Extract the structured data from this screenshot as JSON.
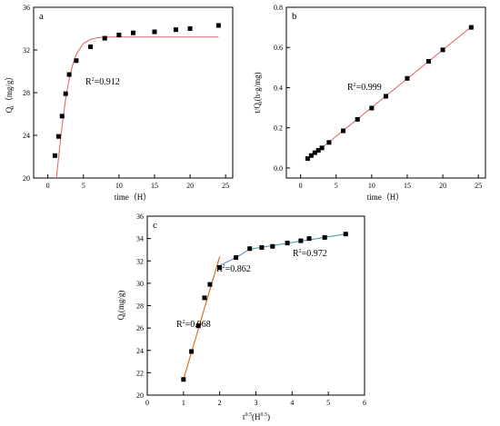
{
  "chart_data": [
    {
      "type": "scatter",
      "panel_label": "a",
      "xlabel": "time（H）",
      "ylabel": "Qt（mg/g）",
      "ylabel_main": "Q",
      "ylabel_sub": "t",
      "ylabel_rest": "（mg/g）",
      "xlim": [
        -2,
        26
      ],
      "ylim": [
        20,
        36
      ],
      "x_ticks": [
        0,
        5,
        10,
        15,
        20,
        25
      ],
      "y_ticks": [
        20,
        24,
        28,
        32,
        36
      ],
      "marker_color": "#000000",
      "series": [
        {
          "x": [
            1,
            1.5,
            2,
            2.5,
            3,
            4,
            6,
            8,
            10,
            12,
            15,
            18,
            20,
            24
          ],
          "y": [
            22.1,
            23.9,
            25.8,
            27.9,
            29.7,
            31.0,
            32.3,
            33.1,
            33.4,
            33.6,
            33.7,
            33.9,
            34.0,
            34.3
          ]
        }
      ],
      "fit": {
        "color": "#e06060",
        "r2_text": "R2=0.912",
        "r2_main": "R",
        "r2_sup": "2",
        "r2_rest": "=0.912",
        "x": [
          1.2,
          1.6,
          2.0,
          2.5,
          3.0,
          3.5,
          4.0,
          5.0,
          6.0,
          7.0,
          8.0,
          10.0,
          14.0,
          20.0,
          24.0
        ],
        "y": [
          20.0,
          22.5,
          24.9,
          27.4,
          29.3,
          30.6,
          31.6,
          32.6,
          33.0,
          33.15,
          33.2,
          33.22,
          33.22,
          33.22,
          33.22
        ]
      }
    },
    {
      "type": "scatter",
      "panel_label": "b",
      "xlabel": "time（H）",
      "ylabel": "t/Qt(h·g/mg)",
      "ylabel_main": "t/Q",
      "ylabel_sub": "t",
      "ylabel_rest": "(h·g/mg)",
      "xlim": [
        -2,
        26
      ],
      "ylim": [
        -0.05,
        0.8
      ],
      "x_ticks": [
        0,
        5,
        10,
        15,
        20,
        25
      ],
      "y_ticks": [
        0.0,
        0.2,
        0.4,
        0.6,
        0.8
      ],
      "y_tick_labels": [
        "0.0",
        "0.2",
        "0.4",
        "0.6",
        "0.8"
      ],
      "marker_color": "#000000",
      "series": [
        {
          "x": [
            1,
            1.5,
            2,
            2.5,
            3,
            4,
            6,
            8,
            10,
            12,
            15,
            18,
            20,
            24
          ],
          "y": [
            0.047,
            0.062,
            0.076,
            0.088,
            0.1,
            0.127,
            0.185,
            0.242,
            0.298,
            0.357,
            0.446,
            0.531,
            0.588,
            0.7
          ]
        }
      ],
      "fit": {
        "color": "#e06060",
        "r2_text": "R2=0.999",
        "r2_main": "R",
        "r2_sup": "2",
        "r2_rest": "=0.999",
        "x": [
          1,
          24
        ],
        "y": [
          0.043,
          0.703
        ]
      }
    },
    {
      "type": "scatter",
      "panel_label": "c",
      "xlabel": "t0.5(H0.5)",
      "xlabel_main": "t",
      "xlabel_sup": "0.5",
      "xlabel_mid": "(H",
      "xlabel_sup2": "0.5",
      "xlabel_end": ")",
      "ylabel": "Qt(mg/g)",
      "ylabel_main": "Q",
      "ylabel_sub": "t",
      "ylabel_rest": "(mg/g)",
      "xlim": [
        0,
        6
      ],
      "ylim": [
        20,
        36
      ],
      "x_ticks": [
        0,
        1,
        2,
        3,
        4,
        5,
        6
      ],
      "y_ticks": [
        20,
        22,
        24,
        26,
        28,
        30,
        32,
        34,
        36
      ],
      "marker_color": "#000000",
      "series": [
        {
          "x": [
            1.0,
            1.22,
            1.41,
            1.58,
            1.73,
            2.0,
            2.45,
            2.83,
            3.16,
            3.46,
            3.87,
            4.24,
            4.47,
            4.9,
            5.48
          ],
          "y": [
            21.4,
            23.9,
            26.2,
            28.7,
            29.9,
            31.4,
            32.3,
            33.1,
            33.2,
            33.3,
            33.6,
            33.8,
            34.0,
            34.1,
            34.4
          ]
        }
      ],
      "fits": [
        {
          "color": "#d2691e",
          "r2_text": "R2=0.968",
          "r2_main": "R",
          "r2_sup": "2",
          "r2_rest": "=0.968",
          "x": [
            1.0,
            2.0
          ],
          "y": [
            21.4,
            32.4
          ]
        },
        {
          "color": "#6a8fc8",
          "r2_text": "R2=0.862",
          "r2_main": "R",
          "r2_sup": "2",
          "r2_rest": "=0.862",
          "x": [
            2.0,
            2.45,
            2.83
          ],
          "y": [
            31.6,
            32.3,
            33.05
          ]
        },
        {
          "color": "#4aa3a3",
          "r2_text": "R2=0.972",
          "r2_main": "R",
          "r2_sup": "2",
          "r2_rest": "=0.972",
          "x": [
            2.83,
            5.48
          ],
          "y": [
            33.05,
            34.4
          ]
        }
      ]
    }
  ]
}
